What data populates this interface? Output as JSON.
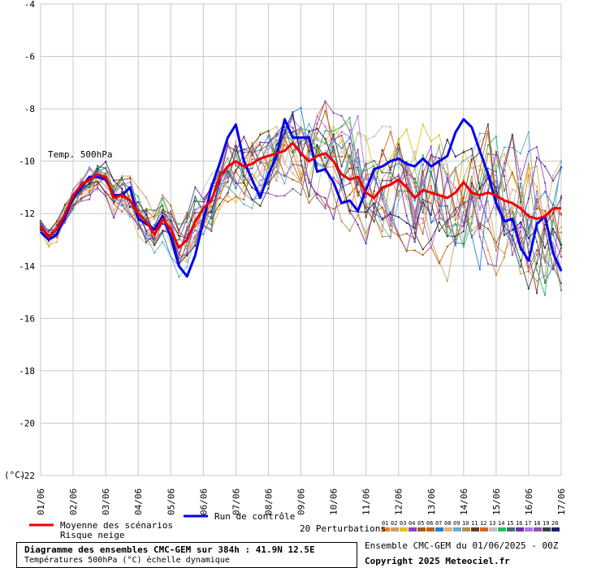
{
  "chart_data": {
    "type": "line",
    "title": "Temp. 500hPa",
    "unit_label": "(°C)",
    "ylim": [
      -22,
      -4
    ],
    "yticks": [
      -4,
      -6,
      -8,
      -10,
      -12,
      -14,
      -16,
      -18,
      -20,
      -22
    ],
    "x_days": [
      1,
      17
    ],
    "x_tick_labels": [
      "01/06",
      "02/06",
      "03/06",
      "04/06",
      "05/06",
      "06/06",
      "07/06",
      "08/06",
      "09/06",
      "10/06",
      "11/06",
      "12/06",
      "13/06",
      "14/06",
      "15/06",
      "16/06",
      "17/06"
    ],
    "grid": true,
    "series": [
      {
        "name": "Moyenne des scénarios",
        "color": "#ee0000",
        "role": "mean",
        "x": [
          1,
          1.25,
          1.5,
          1.75,
          2,
          2.25,
          2.5,
          2.75,
          3,
          3.25,
          3.5,
          3.75,
          4,
          4.25,
          4.5,
          4.75,
          5,
          5.25,
          5.5,
          5.75,
          6,
          6.25,
          6.5,
          6.75,
          7,
          7.25,
          7.5,
          7.75,
          8,
          8.25,
          8.5,
          8.75,
          9,
          9.25,
          9.5,
          9.75,
          10,
          10.25,
          10.5,
          10.75,
          11,
          11.25,
          11.5,
          11.75,
          12,
          12.25,
          12.5,
          12.75,
          13,
          13.25,
          13.5,
          13.75,
          14,
          14.25,
          14.5,
          14.75,
          15,
          15.25,
          15.5,
          15.75,
          16,
          16.25,
          16.5,
          16.75,
          17
        ],
        "y": [
          -12.5,
          -12.9,
          -12.6,
          -12.0,
          -11.3,
          -10.9,
          -10.7,
          -10.5,
          -10.6,
          -11.4,
          -11.3,
          -11.5,
          -12.0,
          -12.3,
          -12.8,
          -12.2,
          -12.6,
          -13.3,
          -13.0,
          -12.3,
          -11.8,
          -11.5,
          -10.6,
          -10.2,
          -10.0,
          -10.2,
          -10.1,
          -9.9,
          -9.8,
          -9.7,
          -9.6,
          -9.3,
          -9.7,
          -10.0,
          -9.8,
          -9.7,
          -10.0,
          -10.5,
          -10.7,
          -10.6,
          -11.2,
          -11.4,
          -11.0,
          -10.9,
          -10.7,
          -11.0,
          -11.4,
          -11.1,
          -11.2,
          -11.3,
          -11.4,
          -11.2,
          -10.8,
          -11.2,
          -11.3,
          -11.2,
          -11.3,
          -11.5,
          -11.6,
          -11.8,
          -12.1,
          -12.2,
          -12.1,
          -11.8,
          -11.8
        ]
      },
      {
        "name": "Run de contrôle",
        "color": "#0000ee",
        "role": "control",
        "x": [
          1,
          1.25,
          1.5,
          1.75,
          2,
          2.25,
          2.5,
          2.75,
          3,
          3.25,
          3.5,
          3.75,
          4,
          4.25,
          4.5,
          4.75,
          5,
          5.25,
          5.5,
          5.75,
          6,
          6.25,
          6.5,
          6.75,
          7,
          7.25,
          7.5,
          7.75,
          8,
          8.25,
          8.5,
          8.75,
          9,
          9.25,
          9.5,
          9.75,
          10,
          10.25,
          10.5,
          10.75,
          11,
          11.25,
          11.5,
          11.75,
          12,
          12.25,
          12.5,
          12.75,
          13,
          13.25,
          13.5,
          13.75,
          14,
          14.25,
          14.5,
          14.75,
          15,
          15.25,
          15.5,
          15.75,
          16,
          16.25,
          16.5,
          16.75,
          17
        ],
        "y": [
          -12.7,
          -13.0,
          -12.8,
          -12.1,
          -11.4,
          -11.0,
          -10.6,
          -10.6,
          -10.7,
          -11.3,
          -11.3,
          -11.0,
          -12.2,
          -12.4,
          -12.6,
          -12.1,
          -12.9,
          -14.0,
          -14.4,
          -13.6,
          -12.3,
          -11.0,
          -10.1,
          -9.1,
          -8.6,
          -10.0,
          -10.7,
          -11.4,
          -10.5,
          -9.8,
          -8.4,
          -9.1,
          -9.1,
          -9.1,
          -10.4,
          -10.3,
          -10.8,
          -11.6,
          -11.5,
          -11.9,
          -11.1,
          -10.3,
          -10.2,
          -10.0,
          -9.9,
          -10.1,
          -10.2,
          -9.9,
          -10.2,
          -10.0,
          -9.8,
          -8.9,
          -8.4,
          -8.7,
          -9.6,
          -10.5,
          -11.6,
          -12.3,
          -12.2,
          -13.3,
          -13.8,
          -12.4,
          -12.1,
          -13.5,
          -14.2
        ]
      }
    ]
  },
  "legend": {
    "mean_label": "Moyenne des scénarios",
    "snow_label": "Risque neige",
    "control_label": "Run de contrôle",
    "perturbations_label": "20 Perturbations",
    "member_numbers": [
      "01",
      "02",
      "03",
      "04",
      "05",
      "06",
      "07",
      "08",
      "09",
      "10",
      "11",
      "12",
      "13",
      "14",
      "15",
      "16",
      "17",
      "18",
      "19",
      "20"
    ],
    "member_colors": [
      "#e08030",
      "#d0a060",
      "#e0c020",
      "#9040c0",
      "#a06020",
      "#c06010",
      "#2080e0",
      "#e8b070",
      "#60b0d0",
      "#b89050",
      "#604020",
      "#e06020",
      "#c0c0c0",
      "#20c060",
      "#407070",
      "#7030a0",
      "#b070f0",
      "#9050b0",
      "#404040",
      "#202070"
    ]
  },
  "footer": {
    "title_line": "Diagramme des ensembles CMC-GEM sur 384h : 41.9N 12.5E",
    "subtitle_line": "Températures 500hPa (°C) échelle dynamique",
    "run_info": "Ensemble CMC-GEM du 01/06/2025 - 00Z",
    "copyright": "Copyright 2025 Meteociel.fr"
  }
}
